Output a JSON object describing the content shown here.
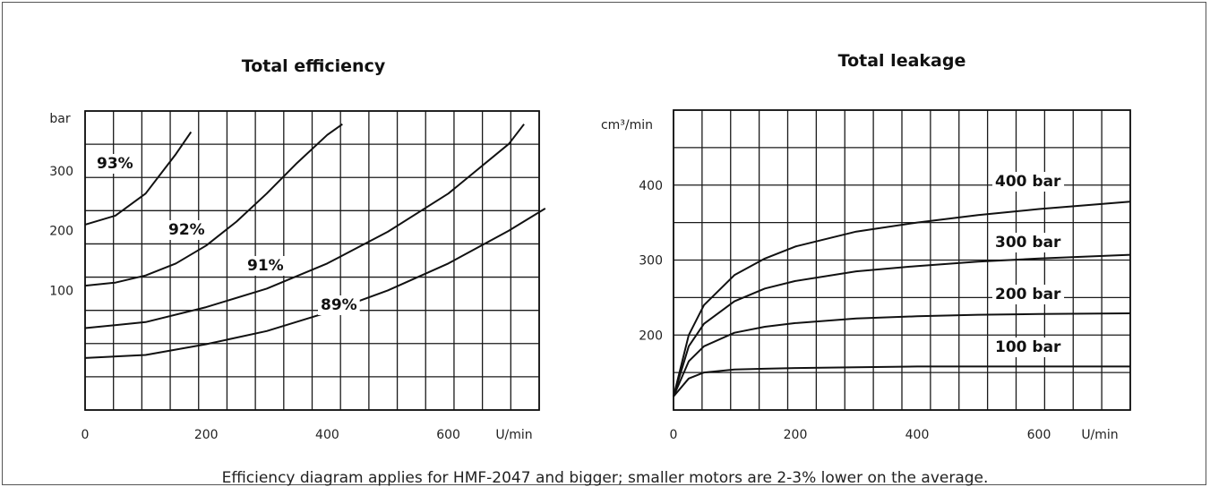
{
  "footnote": "Efficiency diagram applies for HMF-2047 and bigger; smaller motors are 2-3% lower on the average.",
  "chart_data": [
    {
      "type": "line",
      "title": "Total efficiency",
      "ylabel": "bar",
      "xlabel": "U/min",
      "xlim": [
        0,
        750
      ],
      "ylim": [
        -100,
        400
      ],
      "xticks": [
        "0",
        "200",
        "400",
        "600"
      ],
      "yticks": [
        "100",
        "200",
        "300"
      ],
      "grid": true,
      "series": [
        {
          "name": "93%",
          "x": [
            0,
            50,
            100,
            150,
            175
          ],
          "y": [
            210,
            225,
            262,
            328,
            365
          ]
        },
        {
          "name": "92%",
          "x": [
            0,
            50,
            100,
            150,
            200,
            250,
            300,
            350,
            400,
            425
          ],
          "y": [
            108,
            113,
            125,
            145,
            175,
            215,
            262,
            313,
            360,
            378
          ]
        },
        {
          "name": "91%",
          "x": [
            0,
            100,
            200,
            300,
            400,
            500,
            600,
            700,
            725
          ],
          "y": [
            37,
            47,
            72,
            103,
            145,
            198,
            262,
            345,
            378
          ]
        },
        {
          "name": "89%",
          "x": [
            0,
            100,
            200,
            300,
            400,
            500,
            600,
            700,
            760
          ],
          "y": [
            -13,
            -8,
            10,
            32,
            63,
            100,
            145,
            200,
            237
          ]
        }
      ]
    },
    {
      "type": "line",
      "title": "Total leakage",
      "ylabel": "cm³/min",
      "xlabel": "U/min",
      "xlim": [
        0,
        750
      ],
      "ylim": [
        100,
        500
      ],
      "xticks": [
        "0",
        "200",
        "400",
        "600"
      ],
      "yticks": [
        "200",
        "300",
        "400"
      ],
      "grid": true,
      "series": [
        {
          "name": "400 bar",
          "x": [
            0,
            25,
            50,
            100,
            150,
            200,
            300,
            400,
            500,
            600,
            750
          ],
          "y": [
            118,
            200,
            240,
            280,
            302,
            318,
            338,
            350,
            360,
            368,
            378
          ]
        },
        {
          "name": "300 bar",
          "x": [
            0,
            25,
            50,
            100,
            150,
            200,
            300,
            400,
            500,
            600,
            750
          ],
          "y": [
            118,
            185,
            215,
            245,
            262,
            272,
            285,
            292,
            298,
            302,
            307
          ]
        },
        {
          "name": "200 bar",
          "x": [
            0,
            25,
            50,
            100,
            150,
            200,
            300,
            400,
            500,
            600,
            750
          ],
          "y": [
            118,
            165,
            185,
            203,
            211,
            216,
            222,
            225,
            227,
            228,
            229
          ]
        },
        {
          "name": "100 bar",
          "x": [
            0,
            25,
            50,
            100,
            150,
            200,
            300,
            400,
            500,
            600,
            750
          ],
          "y": [
            118,
            142,
            150,
            154,
            155,
            156,
            157,
            158,
            158,
            158,
            158
          ]
        }
      ]
    }
  ]
}
